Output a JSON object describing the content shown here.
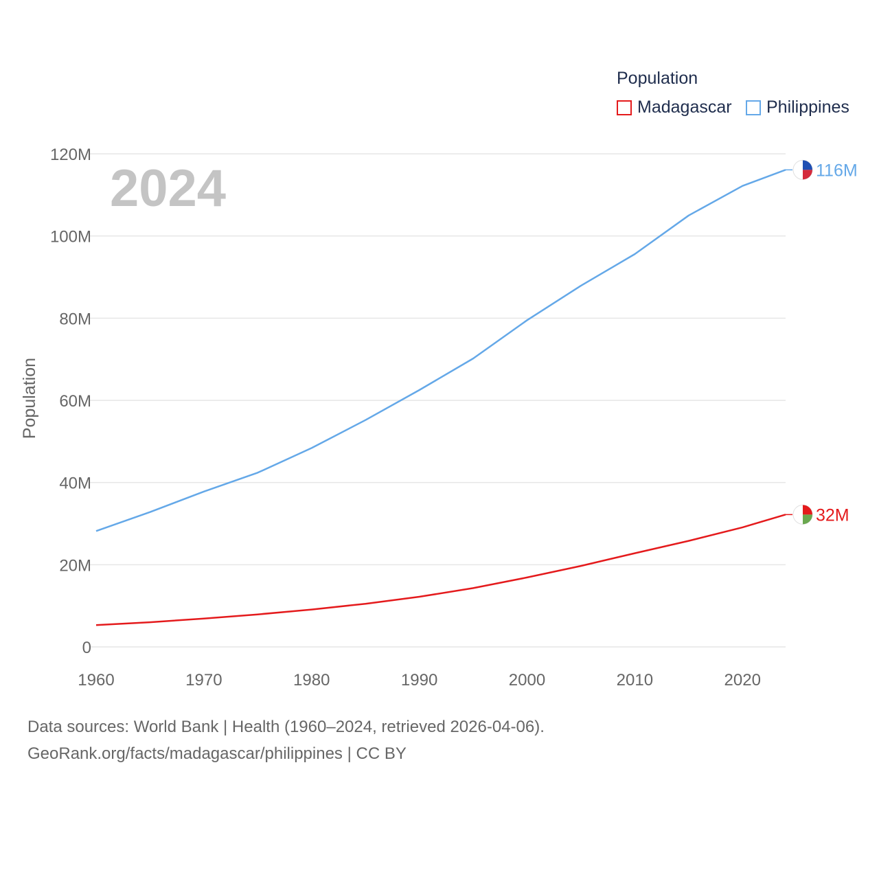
{
  "legend": {
    "title": "Population",
    "items": [
      {
        "label": "Madagascar",
        "color": "#e41a1c"
      },
      {
        "label": "Philippines",
        "color": "#64a8e8"
      }
    ]
  },
  "footer": {
    "line1": "Data sources: World Bank | Health (1960–2024, retrieved 2026-04-06).",
    "line2": "GeoRank.org/facts/madagascar/philippines | CC BY"
  },
  "chart_data": {
    "type": "line",
    "title": "",
    "year_label": "2024",
    "ylabel": "Population",
    "xlabel": "",
    "xlim": [
      1960,
      2024
    ],
    "ylim": [
      0,
      120000000
    ],
    "x_ticks": [
      1960,
      1970,
      1980,
      1990,
      2000,
      2010,
      2020
    ],
    "y_ticks": [
      0,
      20000000,
      40000000,
      60000000,
      80000000,
      100000000,
      120000000
    ],
    "y_tick_labels": [
      "0",
      "20M",
      "40M",
      "60M",
      "80M",
      "100M",
      "120M"
    ],
    "grid": true,
    "legend_position": "top-right",
    "series": [
      {
        "name": "Madagascar",
        "color": "#e41a1c",
        "end_label": "32M",
        "flag": [
          "#ffffff",
          "#e41a1c",
          "#6aa84f"
        ],
        "x": [
          1960,
          1965,
          1970,
          1975,
          1980,
          1985,
          1990,
          1995,
          2000,
          2005,
          2010,
          2015,
          2020,
          2024
        ],
        "values": [
          5300000,
          6000000,
          6900000,
          7900000,
          9100000,
          10500000,
          12200000,
          14300000,
          16900000,
          19700000,
          22800000,
          25800000,
          29100000,
          32200000
        ]
      },
      {
        "name": "Philippines",
        "color": "#64a8e8",
        "end_label": "116M",
        "flag": [
          "#ffffff",
          "#1f4fb3",
          "#d42a3c"
        ],
        "x": [
          1960,
          1965,
          1970,
          1975,
          1980,
          1985,
          1990,
          1995,
          2000,
          2005,
          2010,
          2015,
          2020,
          2024
        ],
        "values": [
          28200000,
          32800000,
          37800000,
          42400000,
          48400000,
          55200000,
          62500000,
          70200000,
          79500000,
          87900000,
          95600000,
          105000000,
          112200000,
          116100000
        ]
      }
    ]
  }
}
